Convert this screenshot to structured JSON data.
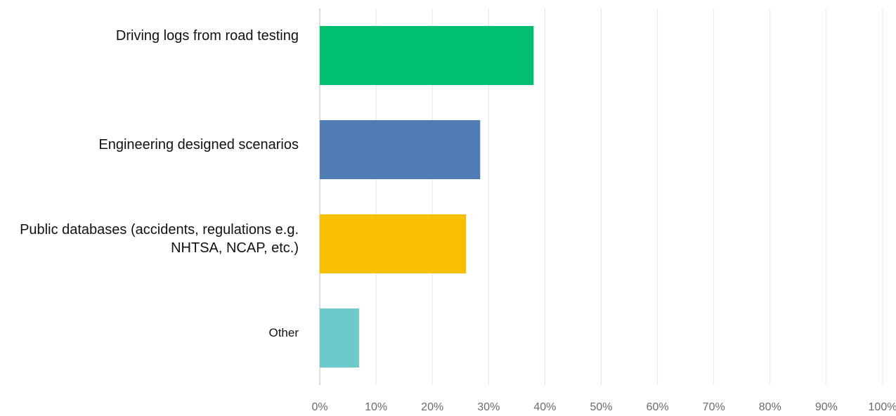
{
  "chart_data": {
    "type": "hbar",
    "categories": [
      "Driving logs from road testing",
      "Engineering designed scenarios",
      "Public databases (accidents, regulations e.g. NHTSA, NCAP, etc.)",
      "Other"
    ],
    "values": [
      38,
      28.5,
      26,
      7
    ],
    "colors": [
      "#00bf6f",
      "#4f7cb4",
      "#f7bf00",
      "#6cc9cc"
    ],
    "xlim": [
      0,
      100
    ],
    "xticks": [
      {
        "value": 0,
        "label": "0%"
      },
      {
        "value": 10,
        "label": "10%"
      },
      {
        "value": 20,
        "label": "20%"
      },
      {
        "value": 30,
        "label": "30%"
      },
      {
        "value": 40,
        "label": "40%"
      },
      {
        "value": 50,
        "label": "50%"
      },
      {
        "value": 60,
        "label": "60%"
      },
      {
        "value": 70,
        "label": "70%"
      },
      {
        "value": 80,
        "label": "80%"
      },
      {
        "value": 90,
        "label": "90%"
      },
      {
        "value": 100,
        "label": "100%"
      }
    ],
    "grid": true
  }
}
